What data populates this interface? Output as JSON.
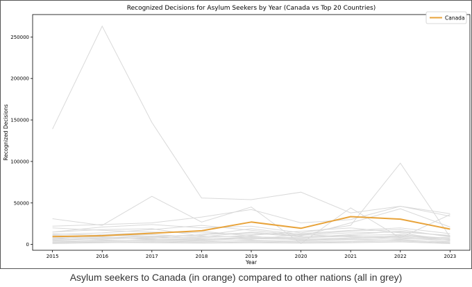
{
  "caption": "Asylum seekers to Canada (in orange) compared to other nations (all in grey)",
  "colors": {
    "highlight": "#e8a33a",
    "others": "#d9d9d9",
    "axis": "#000000",
    "frame": "#555555"
  },
  "chart_data": {
    "type": "line",
    "title": "Recognized Decisions for Asylum Seekers by Year (Canada vs Top 20 Countries)",
    "xlabel": "Year",
    "ylabel": "Recognized Decisions",
    "x": [
      2015,
      2016,
      2017,
      2018,
      2019,
      2020,
      2021,
      2022,
      2023
    ],
    "xlim": [
      2014.6,
      2023.4
    ],
    "ylim": [
      -7000,
      277000
    ],
    "yticks": [
      0,
      50000,
      100000,
      150000,
      200000,
      250000
    ],
    "grid": false,
    "legend": {
      "position": "top-right",
      "entries": [
        "Canada"
      ]
    },
    "highlight_series": {
      "name": "Canada",
      "values": [
        9500,
        10500,
        13500,
        16500,
        27000,
        19500,
        33500,
        30500,
        18500
      ]
    },
    "other_series": [
      {
        "values": [
          139000,
          263000,
          147000,
          56000,
          54000,
          63000,
          38000,
          46000,
          37000
        ]
      },
      {
        "values": [
          31000,
          23000,
          58000,
          27000,
          45000,
          1000,
          44000,
          8000,
          36000
        ]
      },
      {
        "values": [
          15000,
          21000,
          24000,
          20000,
          22000,
          14000,
          23000,
          98000,
          9000
        ]
      },
      {
        "values": [
          22000,
          24000,
          26000,
          33000,
          42000,
          26000,
          30000,
          46000,
          34000
        ]
      },
      {
        "values": [
          20000,
          17000,
          15000,
          14000,
          12000,
          13000,
          17000,
          20000,
          13000
        ]
      },
      {
        "values": [
          12000,
          14000,
          18000,
          23000,
          17000,
          11000,
          14000,
          15000,
          11000
        ]
      },
      {
        "values": [
          15000,
          18000,
          19000,
          10000,
          9000,
          8000,
          12000,
          16000,
          10000
        ]
      },
      {
        "values": [
          9000,
          10000,
          12000,
          9000,
          15000,
          10000,
          26000,
          43000,
          21000
        ]
      },
      {
        "values": [
          6000,
          8000,
          10000,
          7000,
          6000,
          12000,
          9000,
          10000,
          8000
        ]
      },
      {
        "values": [
          5000,
          7000,
          8000,
          6000,
          8000,
          7000,
          6000,
          8000,
          4000
        ]
      },
      {
        "values": [
          3000,
          4000,
          6000,
          5000,
          7000,
          6000,
          8000,
          9000,
          6000
        ]
      },
      {
        "values": [
          11000,
          9000,
          7000,
          12000,
          14000,
          9000,
          11000,
          12000,
          7000
        ]
      },
      {
        "values": [
          7000,
          6000,
          9000,
          8000,
          11000,
          16000,
          20000,
          14000,
          5000
        ]
      },
      {
        "values": [
          2000,
          3000,
          4000,
          3000,
          5000,
          4000,
          6000,
          5000,
          3000
        ]
      },
      {
        "values": [
          4000,
          5000,
          5000,
          4000,
          4000,
          3000,
          4000,
          6000,
          2000
        ]
      },
      {
        "values": [
          1000,
          2000,
          3000,
          2000,
          3000,
          2000,
          3000,
          4000,
          1500
        ]
      },
      {
        "values": [
          8000,
          9000,
          6000,
          6000,
          9000,
          8000,
          10000,
          7000,
          6000
        ]
      },
      {
        "values": [
          13000,
          11000,
          10000,
          11000,
          19000,
          12000,
          16000,
          18000,
          9000
        ]
      },
      {
        "values": [
          2500,
          2500,
          2000,
          1500,
          2000,
          1500,
          2000,
          3000,
          1000
        ]
      },
      {
        "values": [
          6500,
          12000,
          14000,
          16000,
          10000,
          5000,
          7000,
          11000,
          5500
        ]
      }
    ]
  }
}
